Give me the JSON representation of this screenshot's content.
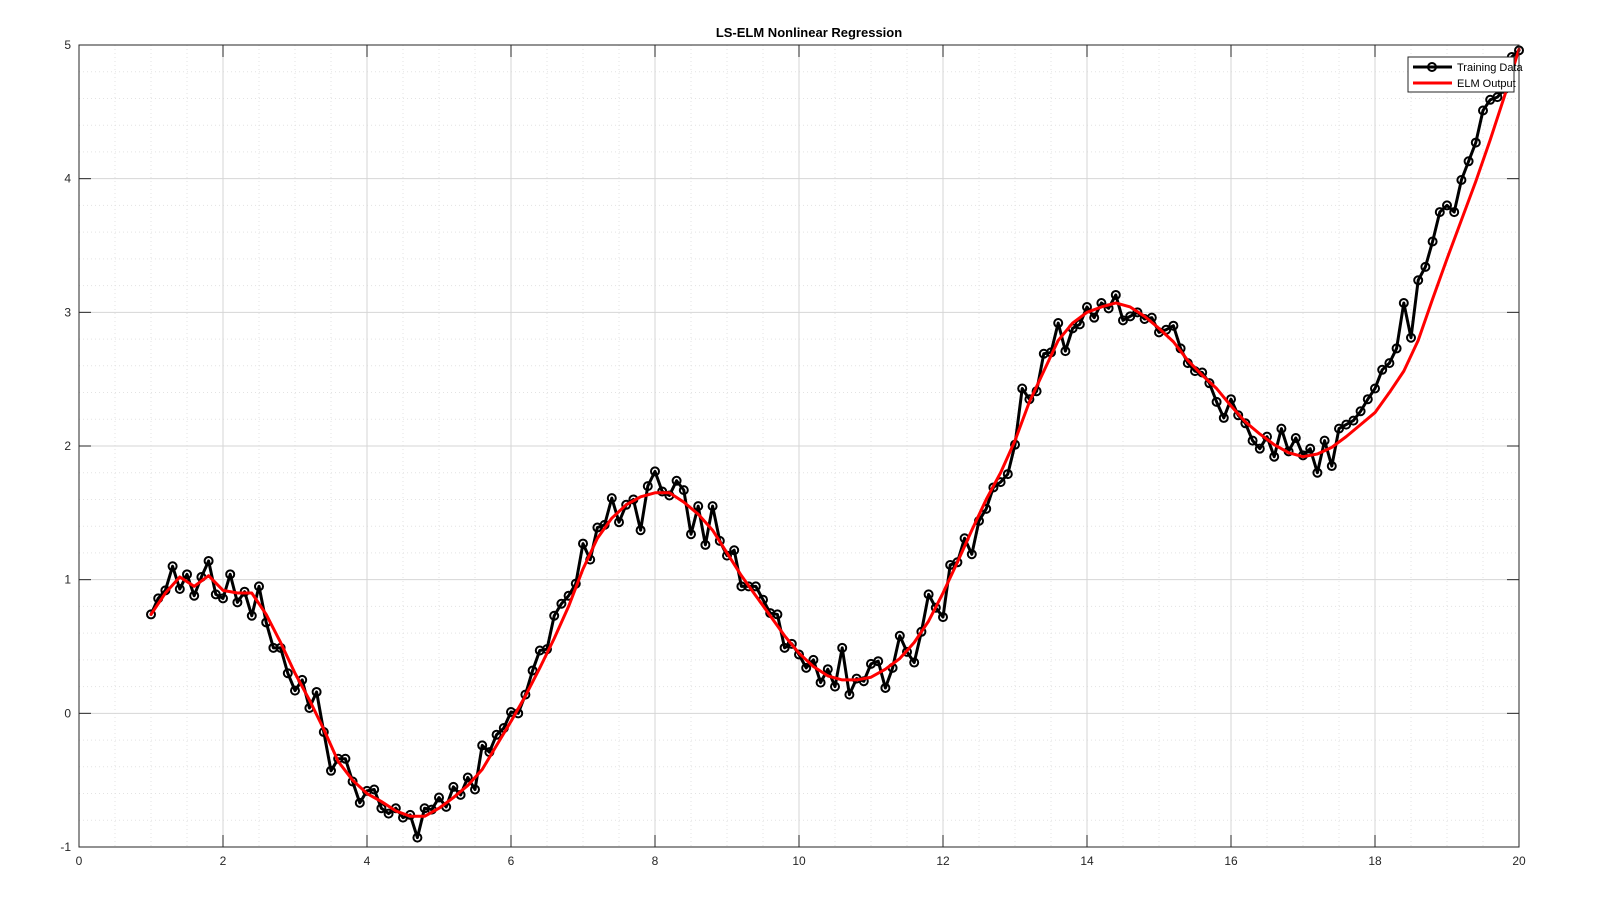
{
  "chart_data": {
    "type": "line",
    "title": "LS-ELM Nonlinear Regression",
    "xlabel": "",
    "ylabel": "",
    "xlim": [
      0,
      20
    ],
    "ylim": [
      -1,
      5
    ],
    "x_ticks": [
      "0",
      "2",
      "4",
      "6",
      "8",
      "10",
      "12",
      "14",
      "16",
      "18",
      "20"
    ],
    "y_ticks": [
      "-1",
      "0",
      "1",
      "2",
      "3",
      "4",
      "5"
    ],
    "grid": true,
    "minor_grid": true,
    "legend_position": "top-right",
    "series": [
      {
        "name": "Training Data",
        "color": "#000000",
        "marker": "circle",
        "x": [
          1.0,
          1.1,
          1.2,
          1.3,
          1.4,
          1.5,
          1.6,
          1.7,
          1.8,
          1.9,
          2.0,
          2.1,
          2.2,
          2.3,
          2.4,
          2.5,
          2.6,
          2.7,
          2.8,
          2.9,
          3.0,
          3.1,
          3.2,
          3.3,
          3.4,
          3.5,
          3.6,
          3.7,
          3.8,
          3.9,
          4.0,
          4.1,
          4.2,
          4.3,
          4.4,
          4.5,
          4.6,
          4.7,
          4.8,
          4.9,
          5.0,
          5.1,
          5.2,
          5.3,
          5.4,
          5.5,
          5.6,
          5.7,
          5.8,
          5.9,
          6.0,
          6.1,
          6.2,
          6.3,
          6.4,
          6.5,
          6.6,
          6.7,
          6.8,
          6.9,
          7.0,
          7.1,
          7.2,
          7.3,
          7.4,
          7.5,
          7.6,
          7.7,
          7.8,
          7.9,
          8.0,
          8.1,
          8.2,
          8.3,
          8.4,
          8.5,
          8.6,
          8.7,
          8.8,
          8.9,
          9.0,
          9.1,
          9.2,
          9.3,
          9.4,
          9.5,
          9.6,
          9.7,
          9.8,
          9.9,
          10.0,
          10.1,
          10.2,
          10.3,
          10.4,
          10.5,
          10.6,
          10.7,
          10.8,
          10.9,
          11.0,
          11.1,
          11.2,
          11.3,
          11.4,
          11.5,
          11.6,
          11.7,
          11.8,
          11.9,
          12.0,
          12.1,
          12.2,
          12.3,
          12.4,
          12.5,
          12.6,
          12.7,
          12.8,
          12.9,
          13.0,
          13.1,
          13.2,
          13.3,
          13.4,
          13.5,
          13.6,
          13.7,
          13.8,
          13.9,
          14.0,
          14.1,
          14.2,
          14.3,
          14.4,
          14.5,
          14.6,
          14.7,
          14.8,
          14.9,
          15.0,
          15.1,
          15.2,
          15.3,
          15.4,
          15.5,
          15.6,
          15.7,
          15.8,
          15.9,
          16.0,
          16.1,
          16.2,
          16.3,
          16.4,
          16.5,
          16.6,
          16.7,
          16.8,
          16.9,
          17.0,
          17.1,
          17.2,
          17.3,
          17.4,
          17.5,
          17.6,
          17.7,
          17.8,
          17.9,
          18.0,
          18.1,
          18.2,
          18.3,
          18.4,
          18.5,
          18.6,
          18.7,
          18.8,
          18.9,
          19.0,
          19.1,
          19.2,
          19.3,
          19.4,
          19.5,
          19.6,
          19.7,
          19.8,
          19.9,
          20.0
        ],
        "y": [
          0.74,
          0.86,
          0.92,
          1.1,
          0.93,
          1.04,
          0.88,
          1.02,
          1.14,
          0.89,
          0.86,
          1.04,
          0.83,
          0.91,
          0.73,
          0.95,
          0.68,
          0.49,
          0.49,
          0.3,
          0.17,
          0.25,
          0.04,
          0.16,
          -0.14,
          -0.43,
          -0.34,
          -0.34,
          -0.51,
          -0.67,
          -0.58,
          -0.57,
          -0.71,
          -0.75,
          -0.71,
          -0.78,
          -0.76,
          -0.93,
          -0.71,
          -0.72,
          -0.63,
          -0.7,
          -0.55,
          -0.61,
          -0.48,
          -0.57,
          -0.24,
          -0.29,
          -0.16,
          -0.11,
          0.01,
          0.0,
          0.14,
          0.32,
          0.47,
          0.48,
          0.73,
          0.82,
          0.88,
          0.97,
          1.27,
          1.15,
          1.39,
          1.41,
          1.61,
          1.43,
          1.56,
          1.6,
          1.37,
          1.7,
          1.81,
          1.66,
          1.63,
          1.74,
          1.67,
          1.34,
          1.55,
          1.26,
          1.55,
          1.29,
          1.18,
          1.22,
          0.95,
          0.95,
          0.95,
          0.85,
          0.75,
          0.74,
          0.49,
          0.52,
          0.44,
          0.34,
          0.4,
          0.23,
          0.33,
          0.2,
          0.49,
          0.14,
          0.26,
          0.24,
          0.37,
          0.39,
          0.19,
          0.34,
          0.58,
          0.46,
          0.38,
          0.61,
          0.89,
          0.79,
          0.72,
          1.11,
          1.13,
          1.31,
          1.19,
          1.44,
          1.53,
          1.69,
          1.73,
          1.79,
          2.01,
          2.43,
          2.35,
          2.41,
          2.69,
          2.7,
          2.92,
          2.71,
          2.88,
          2.91,
          3.04,
          2.96,
          3.07,
          3.03,
          3.13,
          2.94,
          2.97,
          3.0,
          2.95,
          2.96,
          2.85,
          2.87,
          2.9,
          2.73,
          2.62,
          2.56,
          2.55,
          2.47,
          2.33,
          2.21,
          2.35,
          2.23,
          2.17,
          2.04,
          1.98,
          2.07,
          1.92,
          2.13,
          1.96,
          2.06,
          1.93,
          1.98,
          1.8,
          2.04,
          1.85,
          2.13,
          2.16,
          2.19,
          2.26,
          2.35,
          2.43,
          2.57,
          2.62,
          2.73,
          3.07,
          2.81,
          3.24,
          3.34,
          3.53,
          3.75,
          3.8,
          3.75,
          3.99,
          4.13,
          4.27,
          4.51,
          4.59,
          4.61,
          4.67,
          4.91,
          4.96
        ]
      },
      {
        "name": "ELM Output",
        "color": "#ff0000",
        "marker": "none",
        "x": [
          1.0,
          1.2,
          1.4,
          1.6,
          1.8,
          2.0,
          2.2,
          2.4,
          2.6,
          2.8,
          3.0,
          3.2,
          3.4,
          3.6,
          3.8,
          4.0,
          4.2,
          4.4,
          4.6,
          4.8,
          5.0,
          5.2,
          5.4,
          5.6,
          5.8,
          6.0,
          6.2,
          6.4,
          6.6,
          6.8,
          7.0,
          7.2,
          7.4,
          7.6,
          7.8,
          8.0,
          8.2,
          8.4,
          8.6,
          8.8,
          9.0,
          9.2,
          9.4,
          9.6,
          9.8,
          10.0,
          10.2,
          10.4,
          10.6,
          10.8,
          11.0,
          11.2,
          11.4,
          11.6,
          11.8,
          12.0,
          12.2,
          12.4,
          12.6,
          12.8,
          13.0,
          13.2,
          13.4,
          13.6,
          13.8,
          14.0,
          14.2,
          14.4,
          14.6,
          14.8,
          15.0,
          15.2,
          15.4,
          15.6,
          15.8,
          16.0,
          16.2,
          16.4,
          16.6,
          16.8,
          17.0,
          17.2,
          17.4,
          17.6,
          17.8,
          18.0,
          18.2,
          18.4,
          18.6,
          18.8,
          19.0,
          19.2,
          19.4,
          19.6,
          19.8,
          20.0
        ],
        "y": [
          0.74,
          0.9,
          1.02,
          0.95,
          1.03,
          0.92,
          0.9,
          0.9,
          0.74,
          0.53,
          0.3,
          0.1,
          -0.12,
          -0.36,
          -0.5,
          -0.6,
          -0.66,
          -0.73,
          -0.77,
          -0.77,
          -0.71,
          -0.63,
          -0.54,
          -0.42,
          -0.24,
          -0.06,
          0.13,
          0.34,
          0.56,
          0.8,
          1.08,
          1.31,
          1.46,
          1.56,
          1.62,
          1.65,
          1.65,
          1.58,
          1.49,
          1.37,
          1.2,
          1.03,
          0.88,
          0.73,
          0.58,
          0.45,
          0.35,
          0.28,
          0.25,
          0.25,
          0.27,
          0.33,
          0.41,
          0.53,
          0.69,
          0.9,
          1.13,
          1.37,
          1.6,
          1.8,
          2.04,
          2.33,
          2.56,
          2.79,
          2.92,
          3.0,
          3.04,
          3.07,
          3.04,
          2.97,
          2.88,
          2.78,
          2.64,
          2.53,
          2.43,
          2.3,
          2.18,
          2.09,
          2.01,
          1.95,
          1.92,
          1.94,
          1.99,
          2.07,
          2.16,
          2.25,
          2.4,
          2.56,
          2.79,
          3.1,
          3.4,
          3.69,
          3.98,
          4.29,
          4.62,
          4.97
        ]
      }
    ]
  }
}
